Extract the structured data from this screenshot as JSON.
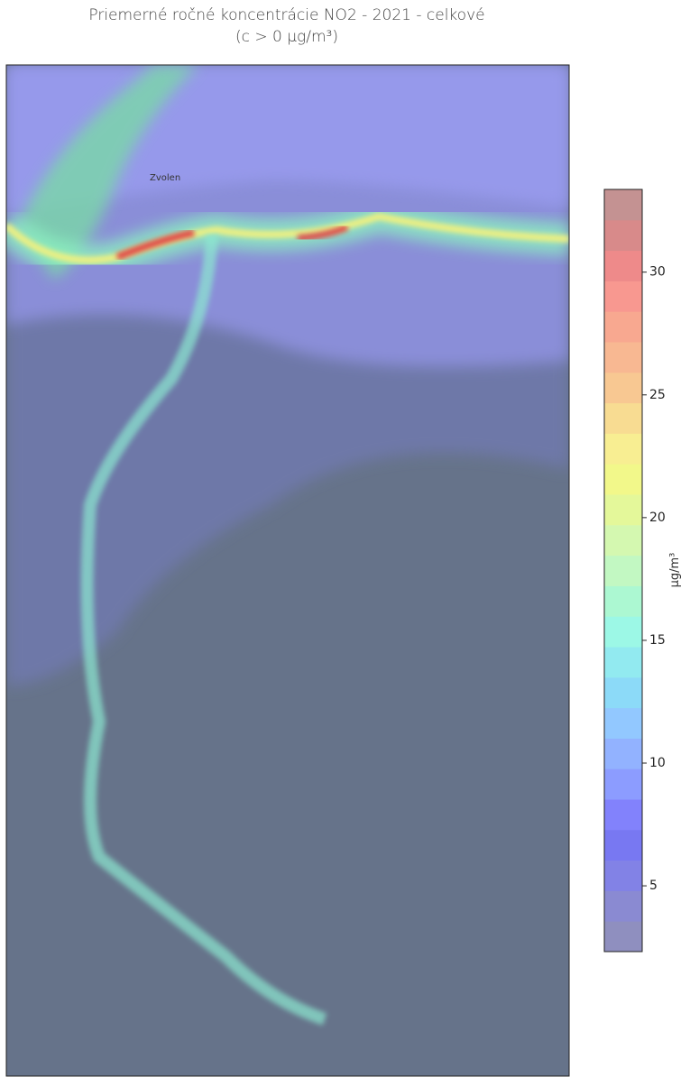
{
  "title": "Priemerné ročné koncentrácie NO2 - 2021 - celkové",
  "subtitle": "(c > 0 μg/m³)",
  "map": {
    "place_labels": [
      "Zvolen"
    ]
  },
  "colorbar": {
    "label": "μg/m³",
    "lim": [
      2.32,
      33.37
    ],
    "ticks": [
      5,
      10,
      15,
      20,
      25,
      30
    ],
    "colors": [
      "#8f8fbf",
      "#8a8ad2",
      "#8282e6",
      "#7878f2",
      "#8282fc",
      "#8c9cff",
      "#92b2ff",
      "#92c8ff",
      "#8cdaf8",
      "#92eaf0",
      "#9cf8e6",
      "#acf8d2",
      "#c2f8c2",
      "#d4f8b0",
      "#e4f89a",
      "#f2f88a",
      "#f8ee92",
      "#f8dc92",
      "#f8c892",
      "#f8b892",
      "#f8a890",
      "#f89890",
      "#ee8a8a",
      "#d88a8a",
      "#c49292"
    ]
  }
}
